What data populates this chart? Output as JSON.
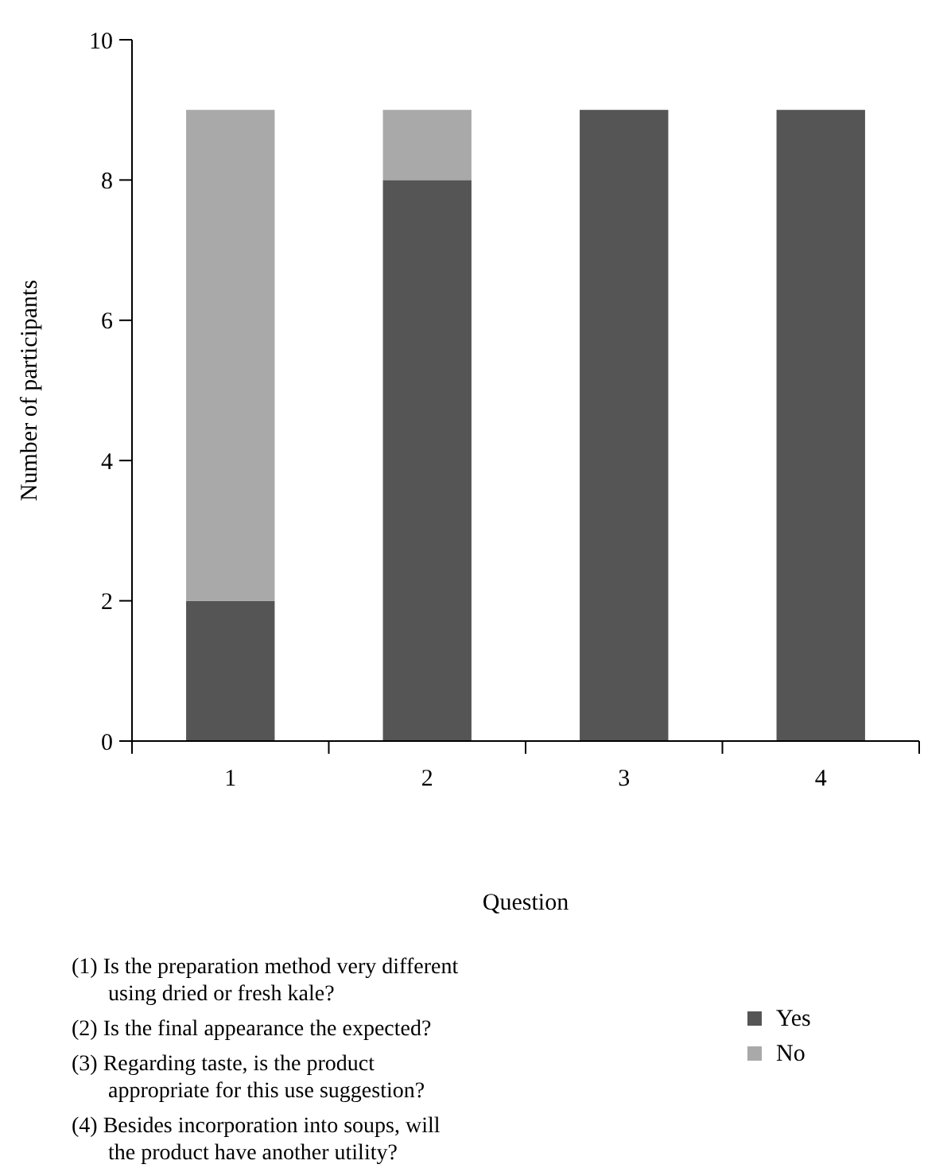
{
  "chart_data": {
    "type": "bar",
    "stacked": true,
    "xlabel": "Question",
    "ylabel": "Number of participants",
    "categories": [
      "1",
      "2",
      "3",
      "4"
    ],
    "series": [
      {
        "name": "Yes",
        "color": "#555555",
        "values": [
          2,
          8,
          9,
          9
        ]
      },
      {
        "name": "No",
        "color": "#a9a9a9",
        "values": [
          7,
          1,
          0,
          0
        ]
      }
    ],
    "ylim": [
      0,
      10
    ],
    "yticks": [
      0,
      2,
      4,
      6,
      8,
      10
    ],
    "grid": false,
    "legend": "bottom right",
    "annotations": [
      "(1) Is the preparation method very different using dried or fresh kale?",
      "(2) Is the final appearance the expected?",
      "(3) Regarding taste, is the product appropriate for this use suggestion?",
      "(4) Besides incorporation into soups, will the product have another utility?"
    ]
  }
}
